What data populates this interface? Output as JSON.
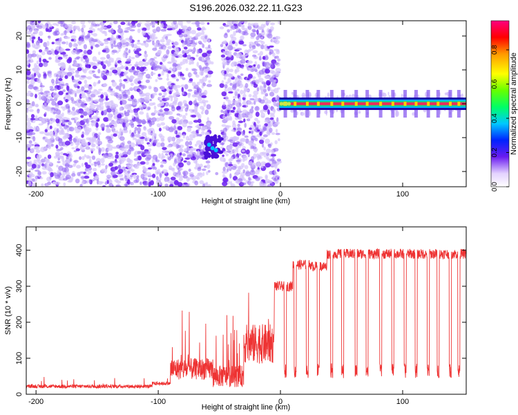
{
  "title": "S196.2026.032.22.11.G23",
  "colors": {
    "snr_line": "#ee3333",
    "scatter_purple": "#6a1cf0",
    "band_core": "#e8305a",
    "band_halo": "#22cc88"
  },
  "chart_data": [
    {
      "id": "spectrogram",
      "type": "heatmap",
      "xlabel": "Height of straight line (km)",
      "ylabel": "Frequency (Hz)",
      "xlim": [
        -208,
        152
      ],
      "ylim": [
        -24.5,
        24.5
      ],
      "xticks": [
        -200,
        -100,
        0,
        100
      ],
      "yticks": [
        -20,
        -10,
        0,
        10,
        20
      ],
      "noise_region_x": [
        -208,
        -1
      ],
      "gap_x": [
        -58,
        -48
      ],
      "signal_blob": {
        "x": -55,
        "y": -12.5
      },
      "carrier_freq": 0,
      "carrier_start_x": -1,
      "colorbar": {
        "label": "Normalized spectral amplitude",
        "ticks": [
          0.0,
          0.2,
          0.4,
          0.6,
          0.8
        ],
        "tick_labels": [
          "0.0",
          "0.2",
          "0.4",
          "0.6",
          "0.8"
        ],
        "range": [
          0,
          0.97
        ]
      }
    },
    {
      "id": "snr",
      "type": "line",
      "xlabel": "Height of straight line (km)",
      "ylabel": "SNR (10 * v/v)",
      "xlim": [
        -208,
        152
      ],
      "ylim": [
        0,
        465
      ],
      "xticks": [
        -200,
        -100,
        0,
        100
      ],
      "yticks": [
        0,
        100,
        200,
        300,
        400
      ],
      "series": [
        {
          "name": "SNR",
          "segments": [
            {
              "x_from": -208,
              "x_to": -105,
              "base": 22
            },
            {
              "x_from": -105,
              "x_to": -90,
              "base": 30
            },
            {
              "x_from": -90,
              "x_to": -55,
              "base": 70
            },
            {
              "x_from": -55,
              "x_to": -30,
              "base": 50
            },
            {
              "x_from": -30,
              "x_to": -5,
              "base": 140
            },
            {
              "x_from": -5,
              "x_to": 10,
              "base": 300
            },
            {
              "x_from": 10,
              "x_to": 25,
              "base": 360
            },
            {
              "x_from": 25,
              "x_to": 38,
              "base": 355
            },
            {
              "x_from": 38,
              "x_to": 152,
              "base": 390
            }
          ],
          "dropouts_x": [
            4,
            12,
            22,
            31,
            42,
            51,
            62,
            71,
            82,
            92,
            102,
            111,
            121,
            129,
            139,
            146
          ]
        }
      ]
    }
  ]
}
